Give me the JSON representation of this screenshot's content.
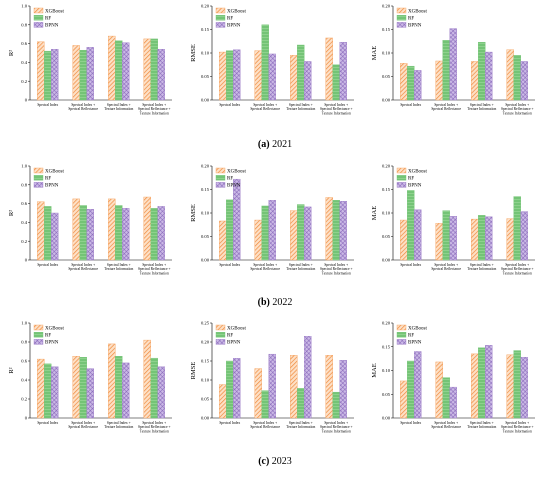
{
  "figure": {
    "rows": [
      {
        "caption_label": "(a)",
        "caption_year": "2021",
        "charts": [
          {
            "type": "bar",
            "ylabel": "R²",
            "ylim": [
              0,
              1.0
            ],
            "yticks": [
              "0",
              "0.2",
              "0.4",
              "0.6",
              "0.8",
              "1.0"
            ],
            "categories": [
              "Spectral Index",
              "Spectral Index +|Spectral Reflectance",
              "Spectral Index +|Texture Information",
              "Spectral Index +|Spectral Reflectance +|Texture Information"
            ],
            "series": [
              {
                "name": "XGBoost",
                "values": [
                  0.62,
                  0.58,
                  0.68,
                  0.65
                ]
              },
              {
                "name": "RF",
                "values": [
                  0.52,
                  0.53,
                  0.63,
                  0.65
                ]
              },
              {
                "name": "BPNN",
                "values": [
                  0.54,
                  0.56,
                  0.61,
                  0.54
                ]
              }
            ]
          },
          {
            "type": "bar",
            "ylabel": "RMSE",
            "ylim": [
              0,
              0.2
            ],
            "yticks": [
              "0.00",
              "0.05",
              "0.10",
              "0.15",
              "0.20"
            ],
            "categories": [
              "Spectral Index",
              "Spectral Index +|Spectral Reflectance",
              "Spectral Index +|Texture Information",
              "Spectral Index +|Spectral Reflectance +|Texture Information"
            ],
            "series": [
              {
                "name": "XGBoost",
                "values": [
                  0.102,
                  0.105,
                  0.095,
                  0.132
                ]
              },
              {
                "name": "RF",
                "values": [
                  0.105,
                  0.16,
                  0.117,
                  0.075
                ]
              },
              {
                "name": "BPNN",
                "values": [
                  0.107,
                  0.098,
                  0.082,
                  0.123
                ]
              }
            ]
          },
          {
            "type": "bar",
            "ylabel": "MAE",
            "ylim": [
              0,
              0.2
            ],
            "yticks": [
              "0.00",
              "0.05",
              "0.10",
              "0.15",
              "0.20"
            ],
            "categories": [
              "Spectral Index",
              "Spectral Index +|Spectral Reflectance",
              "Spectral Index +|Texture Information",
              "Spectral Index +|Spectral Reflectance +|Texture Information"
            ],
            "series": [
              {
                "name": "XGBoost",
                "values": [
                  0.078,
                  0.083,
                  0.082,
                  0.107
                ]
              },
              {
                "name": "RF",
                "values": [
                  0.072,
                  0.127,
                  0.123,
                  0.095
                ]
              },
              {
                "name": "BPNN",
                "values": [
                  0.063,
                  0.152,
                  0.102,
                  0.082
                ]
              }
            ]
          }
        ]
      },
      {
        "caption_label": "(b)",
        "caption_year": "2022",
        "charts": [
          {
            "type": "bar",
            "ylabel": "R²",
            "ylim": [
              0,
              1.0
            ],
            "yticks": [
              "0",
              "0.2",
              "0.4",
              "0.6",
              "0.8",
              "1.0"
            ],
            "categories": [
              "Spectral Index",
              "Spectral Index +|Spectral Reflectance",
              "Spectral Index +|Texture Information",
              "Spectral Index +|Spectral Reflectance +|Texture Information"
            ],
            "series": [
              {
                "name": "XGBoost",
                "values": [
                  0.62,
                  0.65,
                  0.65,
                  0.67
                ]
              },
              {
                "name": "RF",
                "values": [
                  0.57,
                  0.58,
                  0.58,
                  0.55
                ]
              },
              {
                "name": "BPNN",
                "values": [
                  0.5,
                  0.54,
                  0.55,
                  0.57
                ]
              }
            ]
          },
          {
            "type": "bar",
            "ylabel": "RMSE",
            "ylim": [
              0,
              0.2
            ],
            "yticks": [
              "0.00",
              "0.05",
              "0.10",
              "0.15",
              "0.20"
            ],
            "categories": [
              "Spectral Index",
              "Spectral Index +|Spectral Reflectance",
              "Spectral Index +|Texture Information",
              "Spectral Index +|Spectral Reflectance +|Texture Information"
            ],
            "series": [
              {
                "name": "XGBoost",
                "values": [
                  0.083,
                  0.085,
                  0.105,
                  0.133
                ]
              },
              {
                "name": "RF",
                "values": [
                  0.128,
                  0.115,
                  0.118,
                  0.127
                ]
              },
              {
                "name": "BPNN",
                "values": [
                  0.172,
                  0.127,
                  0.113,
                  0.125
                ]
              }
            ]
          },
          {
            "type": "bar",
            "ylabel": "MAE",
            "ylim": [
              0,
              0.2
            ],
            "yticks": [
              "0.00",
              "0.05",
              "0.10",
              "0.15",
              "0.20"
            ],
            "categories": [
              "Spectral Index",
              "Spectral Index +|Spectral Reflectance",
              "Spectral Index +|Texture Information",
              "Spectral Index +|Spectral Reflectance +|Texture Information"
            ],
            "series": [
              {
                "name": "XGBoost",
                "values": [
                  0.085,
                  0.078,
                  0.087,
                  0.088
                ]
              },
              {
                "name": "RF",
                "values": [
                  0.148,
                  0.105,
                  0.095,
                  0.135
                ]
              },
              {
                "name": "BPNN",
                "values": [
                  0.107,
                  0.093,
                  0.092,
                  0.103
                ]
              }
            ]
          }
        ]
      },
      {
        "caption_label": "(c)",
        "caption_year": "2023",
        "charts": [
          {
            "type": "bar",
            "ylabel": "R²",
            "ylim": [
              0,
              1.0
            ],
            "yticks": [
              "0",
              "0.2",
              "0.4",
              "0.6",
              "0.8",
              "1.0"
            ],
            "categories": [
              "Spectral Index",
              "Spectral Index +|Spectral Reflectance",
              "Spectral Index +|Texture Information",
              "Spectral Index +|Spectral Reflectance +|Texture Information"
            ],
            "series": [
              {
                "name": "XGBoost",
                "values": [
                  0.62,
                  0.65,
                  0.78,
                  0.82
                ]
              },
              {
                "name": "RF",
                "values": [
                  0.57,
                  0.64,
                  0.65,
                  0.63
                ]
              },
              {
                "name": "BPNN",
                "values": [
                  0.54,
                  0.52,
                  0.58,
                  0.54
                ]
              }
            ]
          },
          {
            "type": "bar",
            "ylabel": "RMSE",
            "ylim": [
              0,
              0.25
            ],
            "yticks": [
              "0.00",
              "0.05",
              "0.10",
              "0.15",
              "0.20",
              "0.25"
            ],
            "categories": [
              "Spectral Index",
              "Spectral Index +|Spectral Reflectance",
              "Spectral Index +|Texture Information",
              "Spectral Index +|Spectral Reflectance +|Texture Information"
            ],
            "series": [
              {
                "name": "XGBoost",
                "values": [
                  0.088,
                  0.13,
                  0.165,
                  0.165
                ]
              },
              {
                "name": "RF",
                "values": [
                  0.15,
                  0.072,
                  0.078,
                  0.068
                ]
              },
              {
                "name": "BPNN",
                "values": [
                  0.157,
                  0.168,
                  0.215,
                  0.152
                ]
              }
            ]
          },
          {
            "type": "bar",
            "ylabel": "MAE",
            "ylim": [
              0,
              0.2
            ],
            "yticks": [
              "0.00",
              "0.05",
              "0.10",
              "0.15",
              "0.20"
            ],
            "categories": [
              "Spectral Index",
              "Spectral Index +|Spectral Reflectance",
              "Spectral Index +|Texture Information",
              "Spectral Index +|Spectral Reflectance +|Texture Information"
            ],
            "series": [
              {
                "name": "XGBoost",
                "values": [
                  0.078,
                  0.118,
                  0.135,
                  0.133
                ]
              },
              {
                "name": "RF",
                "values": [
                  0.12,
                  0.085,
                  0.148,
                  0.142
                ]
              },
              {
                "name": "BPNN",
                "values": [
                  0.14,
                  0.065,
                  0.153,
                  0.128
                ]
              }
            ]
          }
        ]
      }
    ],
    "colors": {
      "XGBoost": "#f5a05a",
      "RF": "#74c476",
      "BPNN": "#9e7fc8"
    }
  }
}
